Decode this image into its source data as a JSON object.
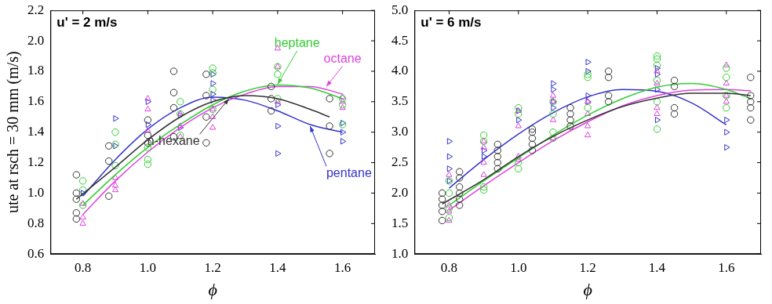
{
  "chart_data": [
    {
      "type": "scatter",
      "title": "u' = 2 m/s",
      "xlabel": "ϕ",
      "ylabel": "ute at rsch = 30 mm (m/s)",
      "xlim": [
        0.7,
        1.7
      ],
      "xticks": [
        0.8,
        {
          "value": 1,
          "label": "1.0"
        },
        1.2,
        1.4,
        1.6
      ],
      "ylim": [
        0.6,
        2.2
      ],
      "yticks": [
        0.6,
        0.8,
        {
          "value": 1,
          "label": "1.0"
        },
        1.2,
        1.4,
        1.6,
        1.8,
        {
          "value": 2,
          "label": "2.0"
        },
        2.2
      ],
      "grid": false,
      "series": [
        {
          "name": "n-hexane",
          "color": "#333333",
          "marker": "hexagon",
          "line_style": "solid",
          "x": [
            0.78,
            0.78,
            0.78,
            0.78,
            0.78,
            0.88,
            0.88,
            0.88,
            1.0,
            1.0,
            1.0,
            1.08,
            1.08,
            1.08,
            1.08,
            1.18,
            1.18,
            1.18,
            1.18,
            1.38,
            1.38,
            1.38,
            1.56,
            1.56,
            1.56
          ],
          "values": [
            1.12,
            1.0,
            0.96,
            0.87,
            0.83,
            1.31,
            1.21,
            0.98,
            1.48,
            1.38,
            1.33,
            1.8,
            1.66,
            1.56,
            1.37,
            1.78,
            1.64,
            1.5,
            1.33,
            1.7,
            1.62,
            1.54,
            1.62,
            1.44,
            1.26
          ],
          "fit": {
            "x": [
              0.78,
              0.9,
              1.0,
              1.1,
              1.2,
              1.3,
              1.4,
              1.5,
              1.56
            ],
            "values": [
              0.96,
              1.17,
              1.35,
              1.5,
              1.6,
              1.64,
              1.62,
              1.55,
              1.5
            ]
          }
        },
        {
          "name": "heptane",
          "color": "#33cc33",
          "marker": "circle",
          "line_style": "solid",
          "x": [
            0.8,
            0.8,
            0.8,
            0.9,
            0.9,
            0.9,
            1.0,
            1.0,
            1.0,
            1.1,
            1.1,
            1.1,
            1.2,
            1.2,
            1.2,
            1.2,
            1.4,
            1.4,
            1.4,
            1.6,
            1.6,
            1.6
          ],
          "values": [
            1.08,
            1.02,
            0.92,
            1.4,
            1.32,
            1.18,
            1.3,
            1.22,
            1.19,
            1.6,
            1.52,
            1.38,
            1.82,
            1.79,
            1.68,
            1.55,
            1.83,
            1.78,
            1.62,
            1.62,
            1.58,
            1.45
          ],
          "fit": {
            "x": [
              0.8,
              0.9,
              1.0,
              1.1,
              1.2,
              1.3,
              1.4,
              1.5,
              1.6
            ],
            "values": [
              0.92,
              1.12,
              1.3,
              1.45,
              1.58,
              1.67,
              1.71,
              1.69,
              1.62
            ]
          }
        },
        {
          "name": "octane",
          "color": "#e040e0",
          "marker": "triangle",
          "line_style": "solid",
          "x": [
            0.8,
            0.8,
            0.8,
            0.9,
            0.9,
            0.9,
            1.0,
            1.0,
            1.0,
            1.1,
            1.1,
            1.1,
            1.2,
            1.2,
            1.2,
            1.4,
            1.4,
            1.4,
            1.6,
            1.6,
            1.6
          ],
          "values": [
            0.93,
            0.84,
            0.8,
            1.1,
            1.05,
            1.02,
            1.62,
            1.55,
            1.41,
            1.52,
            1.44,
            1.37,
            1.55,
            1.5,
            1.43,
            1.95,
            1.83,
            1.6,
            1.63,
            1.6,
            1.56
          ],
          "fit": {
            "x": [
              0.8,
              0.9,
              1.0,
              1.1,
              1.2,
              1.3,
              1.4,
              1.5,
              1.6
            ],
            "values": [
              0.86,
              1.08,
              1.27,
              1.43,
              1.56,
              1.65,
              1.7,
              1.7,
              1.65
            ]
          }
        },
        {
          "name": "pentane",
          "color": "#3333cc",
          "marker": "triangle-right",
          "line_style": "solid",
          "x": [
            0.8,
            0.9,
            0.9,
            1.0,
            1.0,
            1.1,
            1.1,
            1.2,
            1.2,
            1.2,
            1.2,
            1.4,
            1.4,
            1.4,
            1.6,
            1.6,
            1.6
          ],
          "values": [
            1.0,
            1.49,
            1.31,
            1.6,
            1.45,
            1.51,
            1.43,
            1.78,
            1.72,
            1.65,
            1.61,
            1.58,
            1.44,
            1.26,
            1.46,
            1.4,
            1.34
          ],
          "fit": {
            "x": [
              0.8,
              0.9,
              1.0,
              1.1,
              1.2,
              1.3,
              1.4,
              1.5,
              1.6
            ],
            "values": [
              0.98,
              1.22,
              1.42,
              1.56,
              1.63,
              1.61,
              1.54,
              1.45,
              1.4
            ]
          }
        }
      ]
    },
    {
      "type": "scatter",
      "title": "u' = 6 m/s",
      "xlabel": "ϕ",
      "xlim": [
        0.7,
        1.7
      ],
      "xticks": [
        0.8,
        {
          "value": 1,
          "label": "1.0"
        },
        1.2,
        1.4,
        1.6
      ],
      "ylim": [
        1,
        5
      ],
      "yticks": [
        {
          "value": 1,
          "label": "1.0"
        },
        1.5,
        {
          "value": 2,
          "label": "2.0"
        },
        2.5,
        {
          "value": 3,
          "label": "3.0"
        },
        3.5,
        {
          "value": 4,
          "label": "4.0"
        },
        4.5,
        {
          "value": 5,
          "label": "5.0"
        }
      ],
      "grid": false,
      "series": [
        {
          "color": "#333333",
          "marker": "hexagon",
          "line_style": "solid",
          "x": [
            0.78,
            0.78,
            0.78,
            0.78,
            0.78,
            0.83,
            0.83,
            0.83,
            0.83,
            0.83,
            0.83,
            0.94,
            0.94,
            0.94,
            0.94,
            0.94,
            1.04,
            1.04,
            1.04,
            1.04,
            1.04,
            1.15,
            1.15,
            1.15,
            1.15,
            1.26,
            1.26,
            1.26,
            1.26,
            1.45,
            1.45,
            1.45,
            1.45,
            1.67,
            1.67,
            1.67,
            1.67,
            1.67
          ],
          "values": [
            2.0,
            1.9,
            1.8,
            1.7,
            1.55,
            2.35,
            2.25,
            2.1,
            2.0,
            1.9,
            1.8,
            2.8,
            2.7,
            2.6,
            2.5,
            2.4,
            3.05,
            3.0,
            2.9,
            2.8,
            2.7,
            3.4,
            3.3,
            3.2,
            3.1,
            4.0,
            3.9,
            3.6,
            3.5,
            3.85,
            3.75,
            3.4,
            3.3,
            3.9,
            3.6,
            3.5,
            3.4,
            3.2
          ],
          "fit": {
            "x": [
              0.78,
              0.9,
              1.0,
              1.1,
              1.2,
              1.3,
              1.4,
              1.5,
              1.6,
              1.67
            ],
            "values": [
              1.82,
              2.22,
              2.6,
              2.93,
              3.2,
              3.42,
              3.56,
              3.64,
              3.64,
              3.6
            ]
          }
        },
        {
          "color": "#33cc33",
          "marker": "circle",
          "line_style": "solid",
          "x": [
            0.8,
            0.8,
            0.8,
            0.8,
            0.9,
            0.9,
            0.9,
            0.9,
            1.0,
            1.0,
            1.0,
            1.0,
            1.1,
            1.1,
            1.1,
            1.1,
            1.2,
            1.2,
            1.2,
            1.4,
            1.4,
            1.4,
            1.4,
            1.4,
            1.4,
            1.6,
            1.6,
            1.6,
            1.6
          ],
          "values": [
            2.2,
            2.0,
            1.75,
            1.6,
            2.95,
            2.85,
            2.1,
            2.05,
            3.4,
            3.3,
            2.5,
            2.4,
            3.5,
            3.3,
            3.0,
            2.9,
            3.95,
            3.9,
            3.4,
            4.25,
            4.2,
            4.1,
            3.85,
            3.5,
            3.05,
            4.05,
            3.9,
            3.6,
            3.4
          ],
          "fit": {
            "x": [
              0.8,
              0.9,
              1.0,
              1.1,
              1.2,
              1.3,
              1.4,
              1.5,
              1.6,
              1.67
            ],
            "values": [
              1.8,
              2.2,
              2.58,
              2.95,
              3.28,
              3.55,
              3.74,
              3.8,
              3.7,
              3.55
            ]
          }
        },
        {
          "color": "#e040e0",
          "marker": "triangle",
          "line_style": "solid",
          "x": [
            0.8,
            0.8,
            0.8,
            0.8,
            0.9,
            0.9,
            0.9,
            0.9,
            1.0,
            1.0,
            1.0,
            1.0,
            1.1,
            1.1,
            1.1,
            1.1,
            1.2,
            1.2,
            1.2,
            1.2,
            1.4,
            1.4,
            1.4,
            1.4,
            1.6,
            1.6,
            1.6,
            1.6
          ],
          "values": [
            2.3,
            1.8,
            1.7,
            1.55,
            2.85,
            2.75,
            2.5,
            2.3,
            3.35,
            3.1,
            2.6,
            2.55,
            3.6,
            3.5,
            3.2,
            2.9,
            3.5,
            3.3,
            3.1,
            2.95,
            4.0,
            3.8,
            3.4,
            3.3,
            4.1,
            3.8,
            3.6,
            3.5
          ],
          "fit": {
            "x": [
              0.8,
              0.9,
              1.0,
              1.1,
              1.2,
              1.3,
              1.4,
              1.5,
              1.6,
              1.67
            ],
            "values": [
              1.72,
              2.12,
              2.5,
              2.86,
              3.17,
              3.43,
              3.6,
              3.69,
              3.7,
              3.68
            ]
          }
        },
        {
          "color": "#3333cc",
          "marker": "triangle-right",
          "line_style": "solid",
          "x": [
            0.8,
            0.8,
            0.8,
            0.8,
            0.9,
            0.9,
            1.0,
            1.0,
            1.1,
            1.1,
            1.1,
            1.1,
            1.2,
            1.2,
            1.2,
            1.2,
            1.4,
            1.4,
            1.4,
            1.4,
            1.6,
            1.6,
            1.6
          ],
          "values": [
            2.85,
            2.6,
            2.4,
            2.2,
            2.7,
            2.6,
            3.35,
            3.2,
            3.8,
            3.7,
            3.5,
            3.4,
            4.15,
            4.0,
            3.6,
            3.5,
            4.05,
            3.95,
            3.7,
            3.2,
            3.2,
            3.0,
            2.75
          ],
          "fit": {
            "x": [
              0.8,
              0.9,
              1.0,
              1.1,
              1.2,
              1.3,
              1.4,
              1.5,
              1.6
            ],
            "values": [
              2.08,
              2.55,
              2.97,
              3.32,
              3.58,
              3.7,
              3.67,
              3.48,
              3.12
            ]
          }
        }
      ]
    }
  ]
}
